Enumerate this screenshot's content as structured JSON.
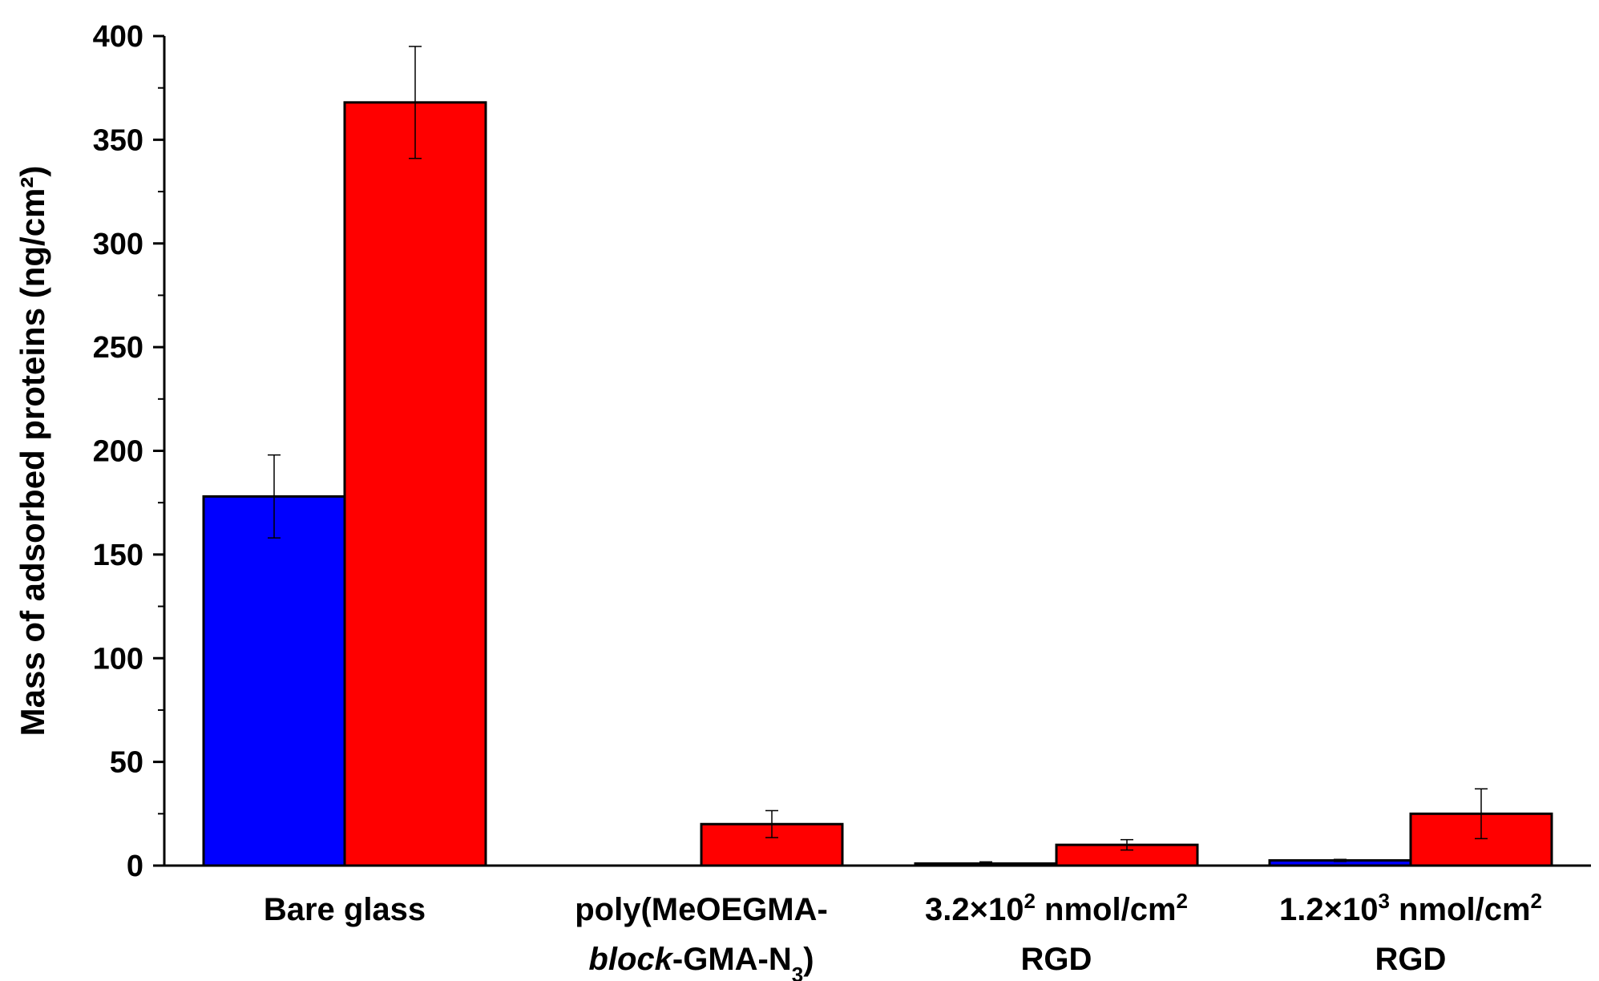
{
  "chart_data": {
    "type": "bar",
    "ylabel": "Mass of adsorbed proteins (ng/cm²)",
    "ylim": [
      0,
      400
    ],
    "yticks": [
      0,
      50,
      100,
      150,
      200,
      250,
      300,
      350,
      400
    ],
    "grid": false,
    "categories": [
      {
        "lines": [
          [
            {
              "t": "Bare glass"
            }
          ]
        ]
      },
      {
        "lines": [
          [
            {
              "t": "poly(MeOEGMA-"
            }
          ],
          [
            {
              "t": "block",
              "i": true
            },
            {
              "t": "-GMA-N"
            },
            {
              "t": "3",
              "sub": true
            },
            {
              "t": ")"
            }
          ]
        ]
      },
      {
        "lines": [
          [
            {
              "t": "3.2×10"
            },
            {
              "t": "2",
              "sup": true
            },
            {
              "t": " nmol/cm"
            },
            {
              "t": "2",
              "sup": true
            }
          ],
          [
            {
              "t": "RGD"
            }
          ]
        ]
      },
      {
        "lines": [
          [
            {
              "t": "1.2×10"
            },
            {
              "t": "3",
              "sup": true
            },
            {
              "t": " nmol/cm"
            },
            {
              "t": "2",
              "sup": true
            }
          ],
          [
            {
              "t": "RGD"
            }
          ]
        ]
      }
    ],
    "series": [
      {
        "color": "#0000ff",
        "values": [
          178,
          0,
          1,
          2.5
        ],
        "errors": [
          20,
          0,
          0.8,
          0.5
        ]
      },
      {
        "color": "#ff0000",
        "values": [
          368,
          20,
          10,
          25
        ],
        "errors": [
          27,
          6.5,
          2.5,
          12
        ]
      }
    ]
  }
}
